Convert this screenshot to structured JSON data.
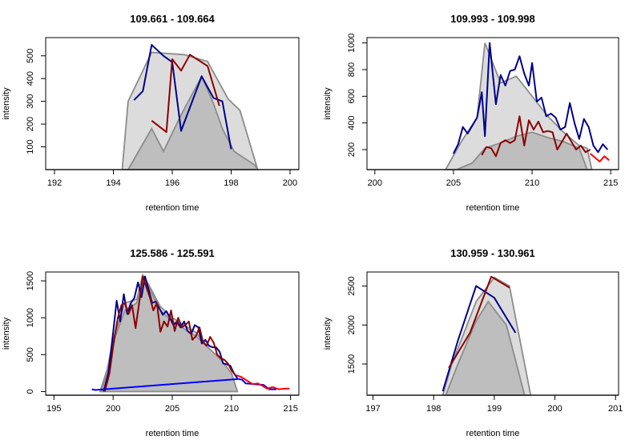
{
  "chart_data": [
    {
      "type": "line",
      "title": "109.661 - 109.664",
      "xlabel": "retention time",
      "ylabel": "intensity",
      "xlim": [
        191.7,
        200.3
      ],
      "ylim": [
        0,
        580
      ],
      "xticks": [
        192,
        194,
        196,
        198,
        200
      ],
      "yticks": [
        100,
        200,
        300,
        400,
        500
      ],
      "areas": [
        {
          "fill": "#dcdcdc",
          "stroke": "#8c8c8c",
          "x": [
            194.3,
            194.5,
            195.3,
            196.4,
            197.2,
            197.9,
            198.3,
            198.9
          ],
          "y": [
            0,
            300,
            515,
            505,
            475,
            310,
            260,
            0
          ]
        },
        {
          "fill": "#bebebe",
          "stroke": "#8c8c8c",
          "x": [
            194.5,
            195.3,
            195.7,
            196.3,
            197.0,
            197.4,
            197.7,
            198.1,
            198.8,
            198.9
          ],
          "y": [
            0,
            180,
            80,
            240,
            410,
            290,
            180,
            80,
            20,
            0
          ]
        }
      ],
      "series": [
        {
          "color": "#00008b",
          "x": [
            194.7,
            195.0,
            195.3,
            195.7,
            196.0,
            196.3,
            197.0,
            197.4,
            197.7,
            198.0
          ],
          "y": [
            305,
            345,
            548,
            500,
            472,
            170,
            410,
            315,
            300,
            90
          ]
        },
        {
          "color": "#8b0000",
          "x": [
            195.3,
            195.8,
            196.0,
            196.3,
            196.6,
            197.2,
            197.6
          ],
          "y": [
            215,
            165,
            485,
            435,
            505,
            455,
            280
          ]
        }
      ]
    },
    {
      "type": "line",
      "title": "109.993 - 109.998",
      "xlabel": "retention time",
      "ylabel": "intensity",
      "xlim": [
        199.5,
        215.5
      ],
      "ylim": [
        50,
        1040
      ],
      "xticks": [
        200,
        205,
        210,
        215
      ],
      "yticks": [
        200,
        400,
        600,
        800,
        1000
      ],
      "areas": [
        {
          "fill": "#dcdcdc",
          "stroke": "#8c8c8c",
          "x": [
            204.5,
            205.5,
            206.5,
            207.0,
            208.0,
            209.0,
            210.0,
            211.0,
            212.0,
            213.0,
            213.5,
            213.8
          ],
          "y": [
            50,
            260,
            440,
            1000,
            700,
            750,
            600,
            450,
            330,
            230,
            210,
            50
          ]
        },
        {
          "fill": "#bebebe",
          "stroke": "#8c8c8c",
          "x": [
            205.2,
            206.2,
            207.0,
            208.0,
            209.0,
            210.0,
            211.0,
            212.0,
            213.0,
            213.5
          ],
          "y": [
            50,
            100,
            210,
            250,
            300,
            330,
            290,
            260,
            210,
            50
          ]
        }
      ],
      "series": [
        {
          "color": "#00008b",
          "x": [
            205.0,
            205.3,
            205.6,
            205.9,
            206.2,
            206.5,
            206.8,
            207.0,
            207.3,
            207.7,
            208.0,
            208.3,
            208.6,
            208.9,
            209.2,
            209.5,
            209.8,
            210.0,
            210.3,
            210.6,
            210.9,
            211.2,
            211.5,
            211.8,
            212.1,
            212.4,
            212.7,
            213.0,
            213.3,
            213.6,
            213.9,
            214.2,
            214.5,
            214.8
          ],
          "y": [
            170,
            240,
            370,
            320,
            380,
            440,
            630,
            300,
            1000,
            540,
            760,
            680,
            790,
            800,
            900,
            770,
            680,
            850,
            560,
            590,
            450,
            470,
            440,
            350,
            370,
            550,
            400,
            280,
            430,
            370,
            230,
            180,
            240,
            200
          ]
        },
        {
          "color": "#8b0000",
          "x": [
            206.8,
            207.1,
            207.4,
            207.7,
            208.0,
            208.3,
            208.6,
            208.9,
            209.2,
            209.5,
            209.8,
            210.1,
            210.4,
            210.7,
            211.0,
            211.3,
            211.6,
            211.9,
            212.2,
            212.5,
            212.8,
            213.1,
            213.4,
            213.7
          ],
          "y": [
            160,
            220,
            210,
            150,
            250,
            270,
            250,
            270,
            450,
            230,
            420,
            350,
            410,
            330,
            340,
            330,
            200,
            260,
            320,
            260,
            200,
            230,
            180,
            200
          ]
        },
        {
          "color": "#ff0000",
          "x": [
            213.7,
            214.0,
            214.3,
            214.6,
            214.9
          ],
          "y": [
            170,
            140,
            110,
            150,
            120
          ]
        }
      ]
    },
    {
      "type": "line",
      "title": "125.586 - 125.591",
      "xlabel": "retention time",
      "ylabel": "intensity",
      "xlim": [
        194.3,
        215.7
      ],
      "ylim": [
        -50,
        1620
      ],
      "xticks": [
        195,
        200,
        205,
        210,
        215
      ],
      "yticks": [
        0,
        500,
        1000,
        1500
      ],
      "areas": [
        {
          "fill": "#dcdcdc",
          "stroke": "#8c8c8c",
          "x": [
            198.9,
            199.5,
            200.0,
            201.0,
            202.0,
            202.5,
            203.0,
            204.0,
            205.0,
            206.0,
            207.0,
            208.0,
            209.0,
            210.0,
            210.5
          ],
          "y": [
            0,
            300,
            700,
            1200,
            1250,
            1580,
            1450,
            1150,
            1000,
            900,
            800,
            600,
            450,
            250,
            0
          ]
        },
        {
          "fill": "#bebebe",
          "stroke": "#8c8c8c",
          "x": [
            199.0,
            199.6,
            200.2,
            201.0,
            202.0,
            202.6,
            203.2,
            204.0,
            205.0,
            206.0,
            207.0,
            208.0,
            209.0,
            210.0,
            210.5
          ],
          "y": [
            0,
            300,
            750,
            1100,
            1200,
            1550,
            1350,
            1100,
            950,
            850,
            750,
            600,
            450,
            250,
            0
          ]
        }
      ],
      "series": [
        {
          "color": "#00008b",
          "x": [
            199.2,
            199.6,
            200.0,
            200.3,
            200.6,
            200.9,
            201.2,
            201.5,
            201.8,
            202.1,
            202.4,
            202.7,
            203.0,
            203.3,
            203.6,
            203.9,
            204.2,
            204.5,
            204.8,
            205.1,
            205.4,
            205.7,
            206.0,
            206.3,
            206.6,
            206.9,
            207.2,
            207.5,
            207.8,
            208.1,
            208.4,
            208.7,
            209.0,
            209.3,
            209.6,
            209.9,
            210.2,
            210.5
          ],
          "y": [
            0,
            250,
            800,
            1230,
            950,
            1320,
            1050,
            1200,
            1270,
            1480,
            1280,
            1560,
            1380,
            1200,
            1220,
            1130,
            1040,
            1090,
            1000,
            900,
            950,
            870,
            950,
            820,
            780,
            900,
            870,
            650,
            700,
            620,
            600,
            600,
            540,
            380,
            370,
            350,
            250,
            180
          ]
        },
        {
          "color": "#8b0000",
          "x": [
            199.3,
            199.7,
            200.1,
            200.4,
            200.7,
            201.0,
            201.3,
            201.6,
            201.9,
            202.2,
            202.5,
            202.8,
            203.1,
            203.4,
            203.7,
            204.0,
            204.3,
            204.6,
            204.9,
            205.2,
            205.5,
            205.8,
            206.1,
            206.4,
            206.7,
            207.0,
            207.3,
            207.6,
            207.9,
            208.2,
            208.5,
            208.8,
            209.1,
            209.4,
            209.7,
            210.0,
            210.3
          ],
          "y": [
            0,
            250,
            720,
            1000,
            1170,
            1200,
            1050,
            1170,
            860,
            1200,
            1560,
            1420,
            1280,
            1100,
            1200,
            810,
            950,
            880,
            1100,
            820,
            1000,
            870,
            900,
            950,
            700,
            750,
            870,
            670,
            620,
            740,
            660,
            500,
            450,
            430,
            380,
            290,
            230
          ]
        },
        {
          "color": "#0000ff",
          "x": [
            198.2,
            198.5,
            210.6,
            210.9,
            211.2,
            212.7,
            213.2,
            213.8
          ],
          "y": [
            30,
            20,
            170,
            160,
            110,
            90,
            30,
            30
          ]
        },
        {
          "color": "#ff0000",
          "x": [
            210.4,
            210.8,
            211.3,
            211.8,
            212.2,
            212.6,
            213.0,
            213.5,
            214.0,
            214.5,
            214.9
          ],
          "y": [
            220,
            200,
            150,
            100,
            110,
            80,
            40,
            60,
            30,
            40,
            40
          ]
        }
      ]
    },
    {
      "type": "line",
      "title": "130.959 - 130.961",
      "xlabel": "retention time",
      "ylabel": "intensity",
      "xlim": [
        196.9,
        201.05
      ],
      "ylim": [
        1100,
        2680
      ],
      "xticks": [
        197,
        198,
        199,
        200,
        201
      ],
      "yticks": [
        1500,
        2000,
        2500
      ],
      "areas": [
        {
          "fill": "#dcdcdc",
          "stroke": "#8c8c8c",
          "x": [
            198.15,
            198.3,
            198.7,
            199.0,
            199.25,
            199.6
          ],
          "y": [
            1100,
            1500,
            2300,
            2610,
            2500,
            1100
          ]
        },
        {
          "fill": "#bebebe",
          "stroke": "#8c8c8c",
          "x": [
            198.2,
            198.4,
            198.7,
            198.9,
            199.2,
            199.5
          ],
          "y": [
            1100,
            1500,
            2050,
            2300,
            2000,
            1100
          ]
        }
      ],
      "series": [
        {
          "color": "#00008b",
          "x": [
            198.15,
            198.4,
            198.7,
            199.0,
            199.35
          ],
          "y": [
            1150,
            1800,
            2500,
            2350,
            1900
          ]
        },
        {
          "color": "#8b0000",
          "x": [
            198.25,
            198.6,
            198.95,
            199.25
          ],
          "y": [
            1450,
            1900,
            2620,
            2480
          ]
        }
      ]
    }
  ]
}
